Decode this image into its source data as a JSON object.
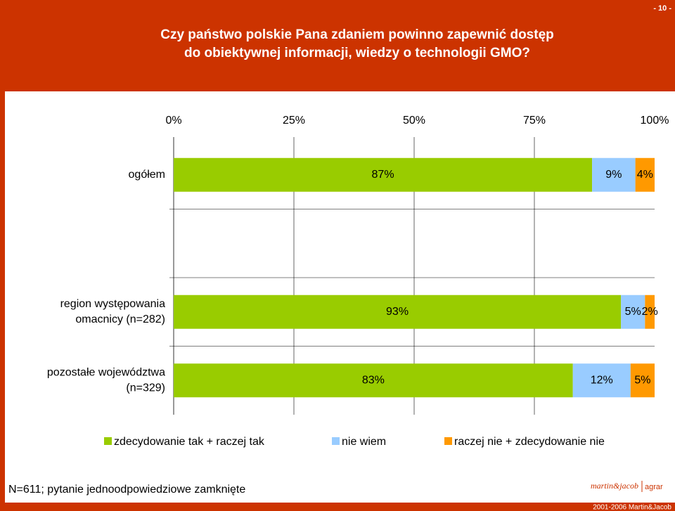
{
  "page_number": "- 10 -",
  "chart_data": {
    "type": "stacked_barh",
    "title": [
      "Czy państwo polskie Pana zdaniem powinno zapewnić dostęp",
      "do obiektywnej informacji, wiedzy o technologii GMO?"
    ],
    "categories": [
      [
        "ogółem"
      ],
      null,
      [
        "region występowania",
        "omacnicy (n=282)"
      ],
      [
        "pozostałe województwa",
        "(n=329)"
      ]
    ],
    "series": [
      {
        "name": "zdecydowanie tak + raczej tak",
        "color": "#99cc00",
        "values": [
          87,
          null,
          93,
          83
        ],
        "value_labels": [
          "87%",
          null,
          "93%",
          "83%"
        ]
      },
      {
        "name": "nie wiem",
        "color": "#99ccff",
        "values": [
          9,
          null,
          5,
          12
        ],
        "value_labels": [
          "9%",
          null,
          "5%",
          "12%"
        ]
      },
      {
        "name": "raczej nie + zdecydowanie nie",
        "color": "#ff9900",
        "values": [
          4,
          null,
          2,
          5
        ],
        "value_labels": [
          "4%",
          null,
          "2%",
          "5%"
        ]
      }
    ],
    "xlim": [
      0,
      100
    ],
    "xticks": [
      {
        "value": 0,
        "label": "0%"
      },
      {
        "value": 25,
        "label": "25%"
      },
      {
        "value": 50,
        "label": "50%"
      },
      {
        "value": 75,
        "label": "75%"
      },
      {
        "value": 100,
        "label": "100%"
      }
    ],
    "grid": true,
    "legend": "bottom"
  },
  "footer": {
    "note": "N=611; pytanie jednoodpowiedziowe zamknięte",
    "logo": "martin&jacob",
    "logo_suffix": "agrar",
    "copyright": "2001-2006 Martin&Jacob"
  }
}
